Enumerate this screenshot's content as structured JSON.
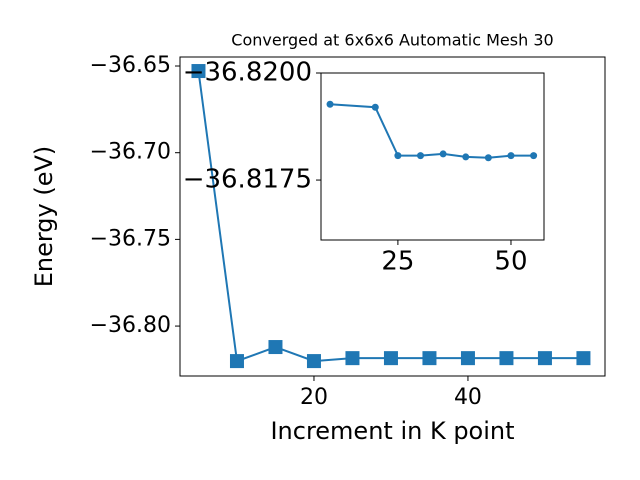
{
  "chart_data": [
    {
      "type": "line",
      "title": "Converged at 6x6x6 Automatic Mesh 30",
      "xlabel": "Increment in K point",
      "ylabel": "Energy (eV)",
      "x": [
        5,
        10,
        15,
        20,
        25,
        30,
        35,
        40,
        45,
        50,
        55
      ],
      "series": [
        {
          "color": "#1f77b4",
          "marker": "square",
          "values": [
            -36.6529,
            -36.8202,
            -36.8121,
            -36.8202,
            -36.8185,
            -36.8185,
            -36.8185,
            -36.8185,
            -36.8185,
            -36.8185,
            -36.8185
          ]
        }
      ],
      "xlim": [
        2.6,
        57.8
      ],
      "ylim": [
        -36.8288,
        -36.6448
      ],
      "xticks": [
        20,
        40
      ],
      "yticks": [
        {
          "value": -36.8,
          "label": "−36.80"
        },
        {
          "value": -36.75,
          "label": "−36.75"
        },
        {
          "value": -36.7,
          "label": "−36.70"
        },
        {
          "value": -36.65,
          "label": "−36.65"
        }
      ]
    },
    {
      "type": "line",
      "x": [
        10,
        20,
        25,
        30,
        35,
        40,
        45,
        50,
        55
      ],
      "series": [
        {
          "color": "#1f77b4",
          "marker": "circle",
          "values": [
            -36.81927,
            -36.8192,
            -36.81807,
            -36.81807,
            -36.81811,
            -36.81804,
            -36.81802,
            -36.81807,
            -36.81807
          ]
        }
      ],
      "xlim": [
        8.0,
        57.3
      ],
      "ylim": [
        -36.8161,
        -36.82
      ],
      "xticks": [
        25,
        50
      ],
      "yticks": [
        {
          "value": -36.8175,
          "label": "−36.8175"
        },
        {
          "value": -36.82,
          "label": "−36.8200"
        }
      ]
    }
  ]
}
